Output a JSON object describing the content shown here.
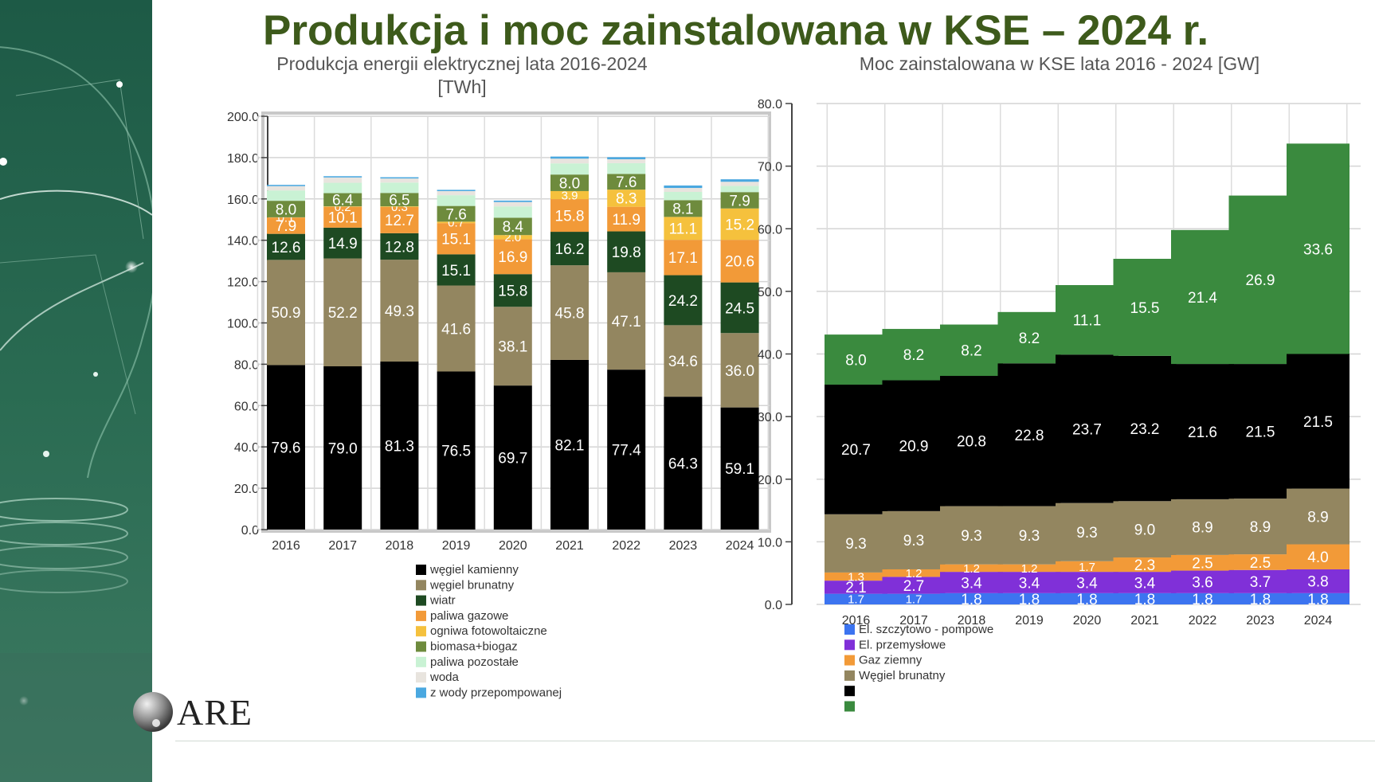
{
  "title": "Produkcja i moc zainstalowana w KSE – 2024 r.",
  "logo_text": "ARE",
  "colors": {
    "title": "#3d5a1b"
  },
  "chart_data": [
    {
      "type": "bar",
      "stacked": true,
      "title_lines": [
        "Produkcja energii elektrycznej lata 2016-2024",
        "[TWh]"
      ],
      "categories": [
        "2016",
        "2017",
        "2018",
        "2019",
        "2020",
        "2021",
        "2022",
        "2023",
        "2024"
      ],
      "ylim": [
        0,
        200
      ],
      "yticks": [
        "0.0",
        "20.0",
        "40.0",
        "60.0",
        "80.0",
        "100.0",
        "120.0",
        "140.0",
        "160.0",
        "180.0",
        "200.0"
      ],
      "grid": true,
      "legend_position": "bottom",
      "series": [
        {
          "name": "węgiel kamienny",
          "color": "#000000",
          "values": [
            79.6,
            79.0,
            81.3,
            76.5,
            69.7,
            82.1,
            77.4,
            64.3,
            59.1
          ],
          "labels": [
            "79.6",
            "79.0",
            "81.3",
            "76.5",
            "69.7",
            "82.1",
            "77.4",
            "64.3",
            "59.1"
          ]
        },
        {
          "name": "węgiel brunatny",
          "color": "#938660",
          "values": [
            50.9,
            52.2,
            49.3,
            41.6,
            38.1,
            45.8,
            47.1,
            34.6,
            36.0
          ],
          "labels": [
            "50.9",
            "52.2",
            "49.3",
            "41.6",
            "38.1",
            "45.8",
            "47.1",
            "34.6",
            "36.0"
          ]
        },
        {
          "name": "wiatr",
          "color": "#1e4a22",
          "values": [
            12.6,
            14.9,
            12.8,
            15.1,
            15.8,
            16.2,
            19.8,
            24.2,
            24.5
          ],
          "labels": [
            "12.6",
            "14.9",
            "12.8",
            "15.1",
            "15.8",
            "16.2",
            "19.8",
            "24.2",
            "24.5"
          ]
        },
        {
          "name": "paliwa gazowe",
          "color": "#f29a38",
          "values": [
            7.9,
            10.1,
            12.7,
            15.1,
            16.9,
            15.8,
            11.9,
            17.1,
            20.6
          ],
          "labels": [
            "7.9",
            "10.1",
            "12.7",
            "15.1",
            "16.9",
            "15.8",
            "11.9",
            "17.1",
            "20.6"
          ]
        },
        {
          "name": "ogniwa fotowoltaiczne",
          "color": "#f5c13d",
          "values": [
            0.1,
            0.2,
            0.3,
            0.7,
            2.0,
            3.9,
            8.3,
            11.1,
            15.2
          ],
          "labels": [
            "0.1",
            "0.2",
            "0.3",
            "0.7",
            "2.0",
            "3.9",
            "8.3",
            "11.1",
            "15.2"
          ]
        },
        {
          "name": "biomasa+biogaz",
          "color": "#6e8b3d",
          "values": [
            8.0,
            6.4,
            6.5,
            7.6,
            8.4,
            8.0,
            7.6,
            8.1,
            7.9
          ],
          "labels": [
            "8.0",
            "6.4",
            "6.5",
            "7.6",
            "8.4",
            "8.0",
            "7.6",
            "8.1",
            "7.9"
          ]
        },
        {
          "name": "paliwa pozostałe",
          "color": "#c9f2d4",
          "values": [
            5.0,
            5.0,
            5.0,
            5.2,
            5.5,
            5.4,
            5.2,
            4.0,
            3.0
          ],
          "labels": [
            "",
            "",
            "",
            "",
            "",
            "",
            "",
            "",
            ""
          ]
        },
        {
          "name": "woda",
          "color": "#e8e4de",
          "values": [
            2.1,
            2.6,
            2.0,
            2.0,
            2.1,
            2.3,
            1.9,
            1.9,
            2.0
          ],
          "labels": [
            "",
            "",
            "",
            "",
            "",
            "",
            "",
            "",
            ""
          ]
        },
        {
          "name": "z wody przepompowanej",
          "color": "#4aa8e0",
          "values": [
            0.6,
            0.6,
            0.6,
            0.6,
            0.7,
            1.0,
            1.0,
            1.2,
            1.2
          ],
          "labels": [
            "",
            "",
            "",
            "",
            "",
            "",
            "",
            "",
            ""
          ]
        }
      ]
    },
    {
      "type": "bar",
      "stacked": true,
      "title_lines": [
        "Moc zainstalowana w KSE lata 2016 - 2024 [GW]"
      ],
      "categories": [
        "2016",
        "2017",
        "2018",
        "2019",
        "2020",
        "2021",
        "2022",
        "2023",
        "2024"
      ],
      "ylim": [
        0,
        80
      ],
      "yticks": [
        "0.0",
        "10.0",
        "20.0",
        "30.0",
        "40.0",
        "50.0",
        "60.0",
        "70.0",
        "80.0"
      ],
      "grid": true,
      "legend_position": "bottom",
      "series": [
        {
          "name": "El. szczytowo - pompowe",
          "color": "#3c74f0",
          "values": [
            1.7,
            1.7,
            1.8,
            1.8,
            1.8,
            1.8,
            1.8,
            1.8,
            1.8
          ],
          "labels": [
            "1.7",
            "1.7",
            "1.8",
            "1.8",
            "1.8",
            "1.8",
            "1.8",
            "1.8",
            "1.8"
          ]
        },
        {
          "name": "El. przemysłowe",
          "color": "#8030d8",
          "values": [
            2.1,
            2.7,
            3.4,
            3.4,
            3.4,
            3.4,
            3.6,
            3.7,
            3.8
          ],
          "labels": [
            "2.1",
            "2.7",
            "3.4",
            "3.4",
            "3.4",
            "3.4",
            "3.6",
            "3.7",
            "3.8"
          ]
        },
        {
          "name": "Gaz ziemny",
          "color": "#f29a38",
          "values": [
            1.3,
            1.2,
            1.2,
            1.2,
            1.7,
            2.3,
            2.5,
            2.5,
            4.0
          ],
          "labels": [
            "1.3",
            "1.2",
            "1.2",
            "1.2",
            "1.7",
            "2.3",
            "2.5",
            "2.5",
            "4.0"
          ]
        },
        {
          "name": "Węgiel brunatny",
          "color": "#938660",
          "values": [
            9.3,
            9.3,
            9.3,
            9.3,
            9.3,
            9.0,
            8.9,
            8.9,
            8.9
          ],
          "labels": [
            "9.3",
            "9.3",
            "9.3",
            "9.3",
            "9.3",
            "9.0",
            "8.9",
            "8.9",
            "8.9"
          ]
        },
        {
          "name": "",
          "color": "#000000",
          "values": [
            20.7,
            20.9,
            20.8,
            22.8,
            23.7,
            23.2,
            21.6,
            21.5,
            21.5
          ],
          "labels": [
            "20.7",
            "20.9",
            "20.8",
            "22.8",
            "23.7",
            "23.2",
            "21.6",
            "21.5",
            "21.5"
          ]
        },
        {
          "name": "",
          "color": "#3a8a3e",
          "values": [
            8.0,
            8.2,
            8.2,
            8.2,
            11.1,
            15.5,
            21.4,
            26.9,
            33.6
          ],
          "labels": [
            "8.0",
            "8.2",
            "8.2",
            "8.2",
            "11.1",
            "15.5",
            "21.4",
            "26.9",
            "33.6"
          ]
        }
      ]
    }
  ]
}
